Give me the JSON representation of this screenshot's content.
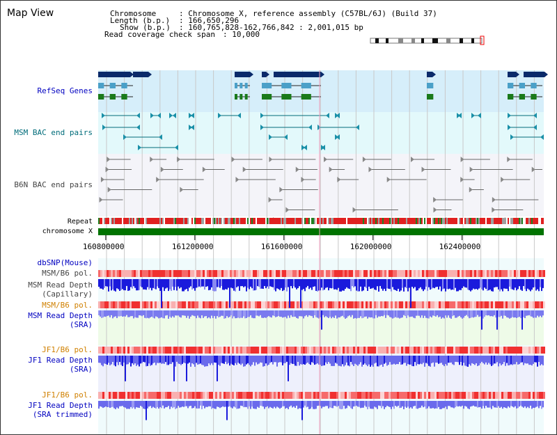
{
  "view_title": "Map View",
  "info": {
    "chromosome_label": "Chromosome",
    "chromosome_value": ": Chromosome X, reference assembly (C57BL/6J) (Build 37)",
    "length_label": "Length (b.p.)",
    "length_value": ": 166,650,296",
    "show_label": "Show (b.p.)",
    "show_value": ": 160,765,828-162,766,842 : 2,001,015 bp",
    "coverage_label": "Read coverage check span",
    "coverage_value": ": 10,000"
  },
  "tracks": {
    "refseq": "RefSeq Genes",
    "msm_bac": "MSM BAC end pairs",
    "b6n_bac": "B6N BAC end pairs",
    "repeat": "Repeat",
    "chromosome": "chromosome X",
    "dbsnp": "dbSNP(Mouse)",
    "msm_b6_pol_1": "MSM/B6 pol.",
    "msm_read_depth_cap_1": "MSM Read Depth",
    "msm_read_depth_cap_2": "(Capillary)",
    "msm_b6_pol_2": "MSM/B6 pol.",
    "msm_read_depth_sra_1": "MSM Read Depth",
    "msm_read_depth_sra_2": "(SRA)",
    "jf1_b6_pol_1": "JF1/B6 pol.",
    "jf1_read_depth_sra_1": "JF1 Read Depth",
    "jf1_read_depth_sra_2": "(SRA)",
    "jf1_b6_pol_2": "JF1/B6 pol.",
    "jf1_read_depth_trim_1": "JF1 Read Depth",
    "jf1_read_depth_trim_2": "(SRA trimmed)"
  },
  "axis": {
    "ticks": [
      160800000,
      161200000,
      161600000,
      162000000,
      162400000
    ],
    "tick_labels": [
      "160800000",
      "161200000",
      "161600000",
      "162000000",
      "162400000"
    ],
    "range": [
      160765828,
      162766842
    ]
  },
  "colors": {
    "refseq_bg": "#d6eefa",
    "msm_bg": "#e3f9fb",
    "b6n_bg": "#f4f4f9",
    "lower_bg": "#f0fbfc",
    "depth_blue": "#1a1adc",
    "depth_light": "#7a7aef",
    "pol_red": "#f03030",
    "pol_pink": "#f9b0b0",
    "chrom_green": "#007300",
    "label_blue": "#0000c0",
    "label_orange": "#d08000",
    "label_teal": "#006c7a"
  }
}
